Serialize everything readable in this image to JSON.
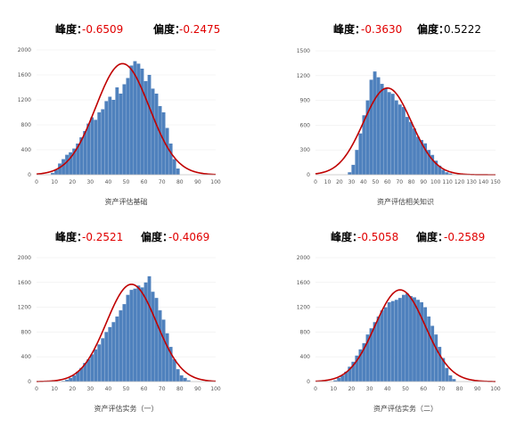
{
  "colors": {
    "bar": "#4f81bd",
    "curve": "#c00000",
    "negative": "#e00000",
    "positive": "#000000",
    "axis": "#bfbfbf"
  },
  "chart_data": [
    {
      "type": "bar",
      "xlabel": "资产评估基础",
      "stats": {
        "kurtosis_label": "峰度：",
        "kurtosis": "-0.6509",
        "skew_label": "偏度：",
        "skew": "-0.2475"
      },
      "xticks": [
        "0",
        "10",
        "20",
        "30",
        "40",
        "50",
        "60",
        "70",
        "80",
        "90",
        "100"
      ],
      "yticks": [
        "0",
        "400",
        "800",
        "1200",
        "1600",
        "2000"
      ],
      "xlim": [
        0,
        100
      ],
      "ylim": [
        0,
        2000
      ],
      "bin_width": 2,
      "bins_x": [
        8,
        10,
        12,
        14,
        16,
        18,
        20,
        22,
        24,
        26,
        28,
        30,
        32,
        34,
        36,
        38,
        40,
        42,
        44,
        46,
        48,
        50,
        52,
        54,
        56,
        58,
        60,
        62,
        64,
        66,
        68,
        70,
        72,
        74,
        76,
        78
      ],
      "values": [
        30,
        80,
        180,
        250,
        320,
        360,
        420,
        500,
        600,
        700,
        820,
        920,
        880,
        1000,
        1050,
        1180,
        1250,
        1200,
        1400,
        1300,
        1450,
        1550,
        1750,
        1820,
        1780,
        1700,
        1500,
        1600,
        1380,
        1300,
        1100,
        1000,
        750,
        500,
        250,
        100
      ],
      "curve": {
        "mean": 48,
        "sd": 15,
        "peak": 1780
      }
    },
    {
      "type": "bar",
      "xlabel": "资产评估相关知识",
      "stats": {
        "kurtosis_label": "峰度：",
        "kurtosis": "-0.3630",
        "skew_label": "偏度：",
        "skew": "0.5222"
      },
      "xticks": [
        "0",
        "10",
        "20",
        "30",
        "40",
        "50",
        "60",
        "70",
        "80",
        "90",
        "100",
        "110",
        "120",
        "130",
        "140",
        "150"
      ],
      "yticks": [
        "0",
        "300",
        "600",
        "900",
        "1200",
        "1500"
      ],
      "xlim": [
        0,
        150
      ],
      "ylim": [
        0,
        1500
      ],
      "bin_width": 3,
      "bins_x": [
        27,
        30,
        33,
        36,
        39,
        42,
        45,
        48,
        51,
        54,
        57,
        60,
        63,
        66,
        69,
        72,
        75,
        78,
        81,
        84,
        87,
        90,
        93,
        96,
        99,
        102,
        105,
        108,
        111
      ],
      "values": [
        30,
        120,
        300,
        500,
        720,
        900,
        1150,
        1250,
        1180,
        1100,
        1050,
        1000,
        980,
        900,
        850,
        820,
        700,
        640,
        560,
        460,
        420,
        380,
        300,
        240,
        170,
        110,
        60,
        30,
        15
      ],
      "curve": {
        "mean": 60,
        "sd": 20,
        "peak": 1050
      }
    },
    {
      "type": "bar",
      "xlabel": "资产评估实务（一）",
      "stats": {
        "kurtosis_label": "峰度：",
        "kurtosis": "-0.2521",
        "skew_label": "偏度：",
        "skew": "-0.4069"
      },
      "xticks": [
        "0",
        "10",
        "20",
        "30",
        "40",
        "50",
        "60",
        "70",
        "80",
        "90",
        "100"
      ],
      "yticks": [
        "0",
        "400",
        "800",
        "1200",
        "1600",
        "2000"
      ],
      "xlim": [
        0,
        100
      ],
      "ylim": [
        0,
        2000
      ],
      "bin_width": 2,
      "bins_x": [
        14,
        16,
        18,
        20,
        22,
        24,
        26,
        28,
        30,
        32,
        34,
        36,
        38,
        40,
        42,
        44,
        46,
        48,
        50,
        52,
        54,
        56,
        58,
        60,
        62,
        64,
        66,
        68,
        70,
        72,
        74,
        76,
        78,
        80,
        82,
        84
      ],
      "values": [
        10,
        30,
        60,
        100,
        160,
        220,
        300,
        360,
        440,
        520,
        600,
        700,
        800,
        880,
        960,
        1050,
        1150,
        1250,
        1400,
        1480,
        1500,
        1550,
        1520,
        1600,
        1700,
        1450,
        1350,
        1150,
        1000,
        780,
        560,
        360,
        200,
        100,
        60,
        20
      ],
      "curve": {
        "mean": 53,
        "sd": 14,
        "peak": 1570
      }
    },
    {
      "type": "bar",
      "xlabel": "资产评估实务（二）",
      "stats": {
        "kurtosis_label": "峰度：",
        "kurtosis": "-0.5058",
        "skew_label": "偏度：",
        "skew": "-0.2589"
      },
      "xticks": [
        "0",
        "10",
        "20",
        "30",
        "40",
        "50",
        "60",
        "70",
        "80",
        "90",
        "100"
      ],
      "yticks": [
        "0",
        "400",
        "800",
        "1200",
        "1600",
        "2000"
      ],
      "xlim": [
        0,
        100
      ],
      "ylim": [
        0,
        2000
      ],
      "bin_width": 2,
      "bins_x": [
        10,
        12,
        14,
        16,
        18,
        20,
        22,
        24,
        26,
        28,
        30,
        32,
        34,
        36,
        38,
        40,
        42,
        44,
        46,
        48,
        50,
        52,
        54,
        56,
        58,
        60,
        62,
        64,
        66,
        68,
        70,
        72,
        74,
        76
      ],
      "values": [
        20,
        60,
        100,
        160,
        240,
        320,
        420,
        520,
        620,
        760,
        860,
        960,
        1050,
        1150,
        1200,
        1280,
        1300,
        1320,
        1350,
        1400,
        1420,
        1380,
        1360,
        1320,
        1280,
        1200,
        1050,
        900,
        760,
        560,
        380,
        220,
        100,
        40
      ],
      "curve": {
        "mean": 47,
        "sd": 14,
        "peak": 1480
      }
    }
  ]
}
